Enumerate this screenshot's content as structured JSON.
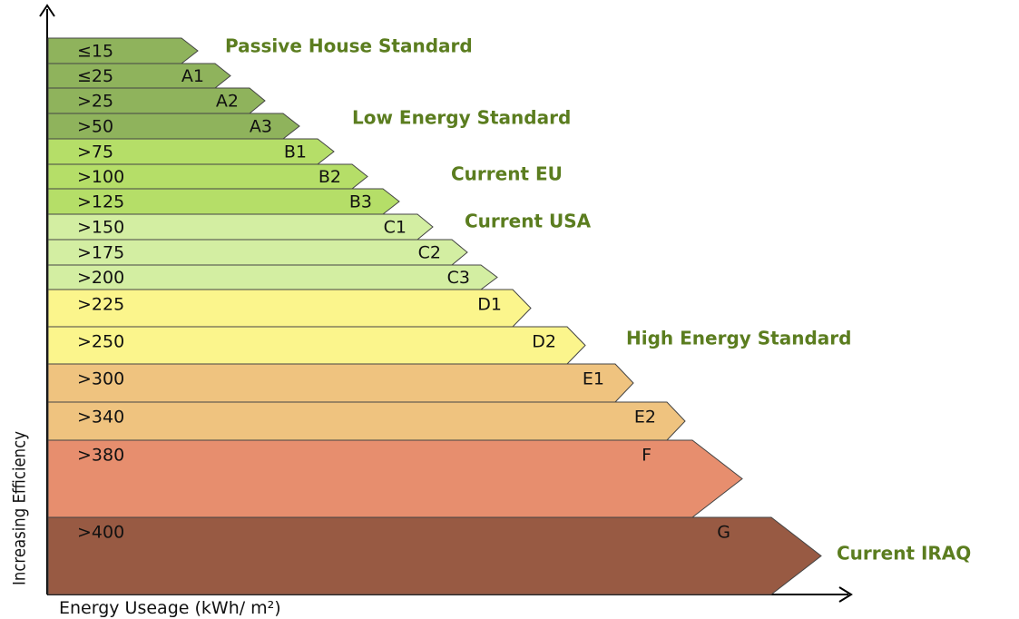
{
  "title_axis_y": "Increasing Efficiency",
  "title_axis_x": "Energy Useage (kWh/ m²)",
  "bands": [
    {
      "range": "≤15",
      "color": "#8fb35c"
    },
    {
      "range": "≤25",
      "class": "A1",
      "color": "#8fb35c"
    },
    {
      "range": ">25",
      "class": "A2",
      "color": "#8fb35c"
    },
    {
      "range": ">50",
      "class": "A3",
      "color": "#8fb35c"
    },
    {
      "range": ">75",
      "class": "B1",
      "color": "#b5de68"
    },
    {
      "range": ">100",
      "class": "B2",
      "color": "#b5de68"
    },
    {
      "range": ">125",
      "class": "B3",
      "color": "#b5de68"
    },
    {
      "range": ">150",
      "class": "C1",
      "color": "#d3eea2"
    },
    {
      "range": ">175",
      "class": "C2",
      "color": "#d3eea2"
    },
    {
      "range": ">200",
      "class": "C3",
      "color": "#d3eea2"
    },
    {
      "range": ">225",
      "class": "D1",
      "color": "#fbf58c"
    },
    {
      "range": ">250",
      "class": "D2",
      "color": "#fbf58c"
    },
    {
      "range": ">300",
      "class": "E1",
      "color": "#efc37f"
    },
    {
      "range": ">340",
      "class": "E2",
      "color": "#efc37f"
    },
    {
      "range": ">380",
      "class": "F",
      "color": "#e78e6e"
    },
    {
      "range": ">400",
      "class": "G",
      "color": "#985a43"
    }
  ],
  "annotations": [
    "Passive House Standard",
    "Low Energy Standard",
    "Current EU",
    "Current USA",
    "High Energy Standard",
    "Current IRAQ"
  ]
}
